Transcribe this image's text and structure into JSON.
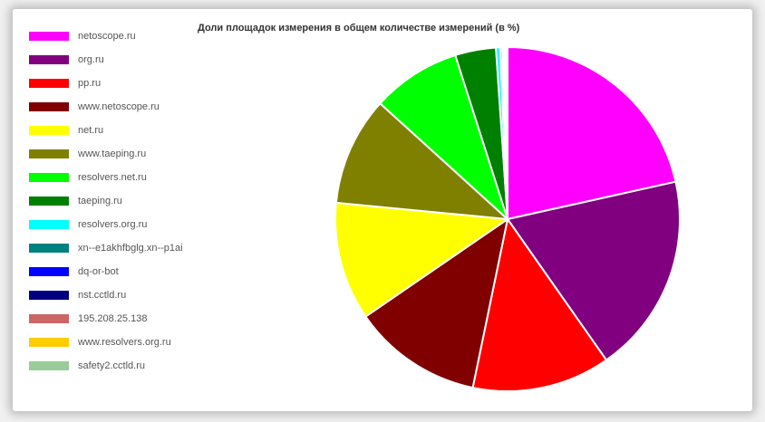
{
  "chart_data": {
    "type": "pie",
    "title": "Доли площадок измерения в общем количестве измерений (в %)",
    "legend_position": "left",
    "slices": [
      {
        "label": "netoscope.ru",
        "value": 21.9,
        "color": "#ff00ff"
      },
      {
        "label": "org.ru",
        "value": 19.1,
        "color": "#800080"
      },
      {
        "label": "pp.ru",
        "value": 13.2,
        "color": "#ff0000"
      },
      {
        "label": "www.netoscope.ru",
        "value": 12.4,
        "color": "#800000"
      },
      {
        "label": "net.ru",
        "value": 11.3,
        "color": "#ffff00"
      },
      {
        "label": "www.taeping.ru",
        "value": 10.4,
        "color": "#808000"
      },
      {
        "label": "resolvers.net.ru",
        "value": 8.5,
        "color": "#00ff00"
      },
      {
        "label": "taeping.ru",
        "value": 3.9,
        "color": "#008000"
      },
      {
        "label": "resolvers.org.ru",
        "value": 0.4,
        "color": "#00ffff"
      },
      {
        "label": "xn--e1akhfbglg.xn--p1ai",
        "value": 0.2,
        "color": "#008080"
      },
      {
        "label": "dq-or-bot",
        "value": 0.1,
        "color": "#0000ff"
      },
      {
        "label": "nst.cctld.ru",
        "value": 0.1,
        "color": "#000080"
      },
      {
        "label": "195.208.25.138",
        "value": 0.1,
        "color": "#cc6666"
      },
      {
        "label": "www.resolvers.org.ru",
        "value": 0.1,
        "color": "#ffcc00"
      },
      {
        "label": "safety2.cctld.ru",
        "value": 0.1,
        "color": "#99cc99"
      }
    ]
  }
}
